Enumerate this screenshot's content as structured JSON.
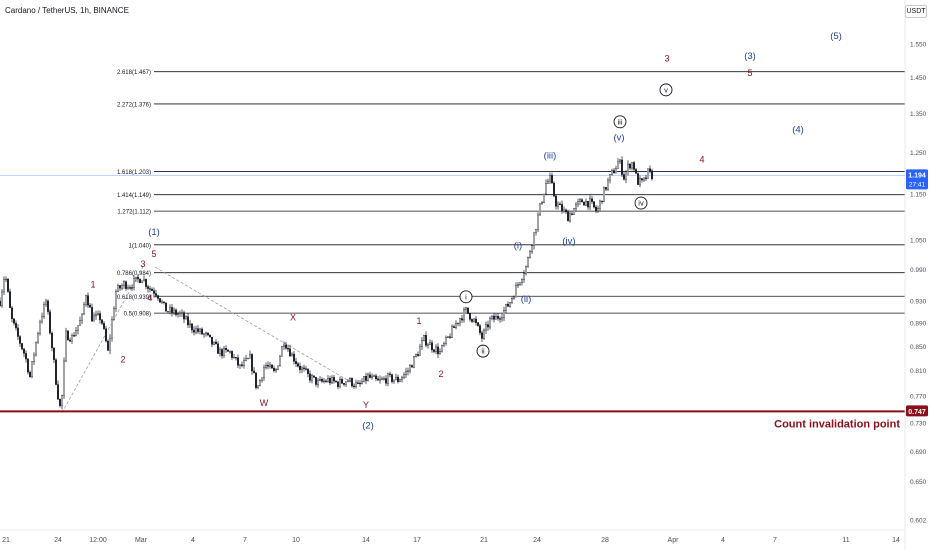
{
  "header": {
    "symbol": "Cardano / TetherUS, 1h, BINANCE",
    "currency": "USDT"
  },
  "colors": {
    "candle": "#131722",
    "fib_line": "#131722",
    "invalidation": "#8b0f1a",
    "wave_red": "#8b0f1a",
    "wave_blue": "#1f3f9a",
    "price_tag": "#2962ff",
    "cursor_line": "#9bb7ff",
    "axis_text": "#4a4e59"
  },
  "price_axis": {
    "ticks": [
      "1.550",
      "1.450",
      "1.350",
      "1.250",
      "1.150",
      "1.050",
      "0.990",
      "0.930",
      "0.890",
      "0.850",
      "0.810",
      "0.770",
      "0.730",
      "0.690",
      "0.650",
      "0.602"
    ],
    "current_price": "1.194",
    "countdown": "27:41",
    "invalidation_price": "0.747"
  },
  "time_axis": {
    "ticks": [
      "21",
      "24",
      "12:00",
      "Mar",
      "4",
      "7",
      "10",
      "14",
      "17",
      "21",
      "24",
      "28",
      "Apr",
      "4",
      "7",
      "11",
      "14"
    ]
  },
  "chart_data": {
    "type": "candlestick",
    "instrument": "Cardano / TetherUS",
    "interval": "1h",
    "exchange": "BINANCE",
    "current_price": 1.194,
    "y_scale": "log",
    "ylim": [
      0.6,
      1.56
    ],
    "price_path": [
      {
        "t": 0,
        "p": 0.93
      },
      {
        "t": 5,
        "p": 0.985
      },
      {
        "t": 11,
        "p": 0.9
      },
      {
        "t": 17,
        "p": 0.87
      },
      {
        "t": 25,
        "p": 0.835
      },
      {
        "t": 30,
        "p": 0.8
      },
      {
        "t": 40,
        "p": 0.895
      },
      {
        "t": 46,
        "p": 0.93
      },
      {
        "t": 52,
        "p": 0.85
      },
      {
        "t": 57,
        "p": 0.78
      },
      {
        "t": 61,
        "p": 0.745
      },
      {
        "t": 66,
        "p": 0.87
      },
      {
        "t": 72,
        "p": 0.865
      },
      {
        "t": 82,
        "p": 0.9
      },
      {
        "t": 86,
        "p": 0.945
      },
      {
        "t": 92,
        "p": 0.9
      },
      {
        "t": 101,
        "p": 0.9
      },
      {
        "t": 108,
        "p": 0.84
      },
      {
        "t": 116,
        "p": 0.948
      },
      {
        "t": 124,
        "p": 0.962
      },
      {
        "t": 130,
        "p": 0.96
      },
      {
        "t": 142,
        "p": 0.975
      },
      {
        "t": 149,
        "p": 0.955
      },
      {
        "t": 157,
        "p": 0.945
      },
      {
        "t": 165,
        "p": 0.915
      },
      {
        "t": 172,
        "p": 0.91
      },
      {
        "t": 181,
        "p": 0.905
      },
      {
        "t": 190,
        "p": 0.885
      },
      {
        "t": 199,
        "p": 0.875
      },
      {
        "t": 206,
        "p": 0.868
      },
      {
        "t": 212,
        "p": 0.855
      },
      {
        "t": 220,
        "p": 0.84
      },
      {
        "t": 230,
        "p": 0.84
      },
      {
        "t": 240,
        "p": 0.815
      },
      {
        "t": 250,
        "p": 0.83
      },
      {
        "t": 257,
        "p": 0.78
      },
      {
        "t": 265,
        "p": 0.82
      },
      {
        "t": 275,
        "p": 0.805
      },
      {
        "t": 284,
        "p": 0.86
      },
      {
        "t": 292,
        "p": 0.835
      },
      {
        "t": 300,
        "p": 0.815
      },
      {
        "t": 308,
        "p": 0.802
      },
      {
        "t": 318,
        "p": 0.79
      },
      {
        "t": 328,
        "p": 0.795
      },
      {
        "t": 338,
        "p": 0.79
      },
      {
        "t": 348,
        "p": 0.795
      },
      {
        "t": 358,
        "p": 0.785
      },
      {
        "t": 368,
        "p": 0.8
      },
      {
        "t": 378,
        "p": 0.792
      },
      {
        "t": 388,
        "p": 0.798
      },
      {
        "t": 398,
        "p": 0.795
      },
      {
        "t": 408,
        "p": 0.81
      },
      {
        "t": 418,
        "p": 0.84
      },
      {
        "t": 424,
        "p": 0.862
      },
      {
        "t": 432,
        "p": 0.85
      },
      {
        "t": 440,
        "p": 0.84
      },
      {
        "t": 450,
        "p": 0.87
      },
      {
        "t": 458,
        "p": 0.895
      },
      {
        "t": 466,
        "p": 0.912
      },
      {
        "t": 474,
        "p": 0.895
      },
      {
        "t": 482,
        "p": 0.865
      },
      {
        "t": 490,
        "p": 0.895
      },
      {
        "t": 497,
        "p": 0.9
      },
      {
        "t": 503,
        "p": 0.91
      },
      {
        "t": 509,
        "p": 0.925
      },
      {
        "t": 515,
        "p": 0.95
      },
      {
        "t": 521,
        "p": 0.975
      },
      {
        "t": 527,
        "p": 1.0
      },
      {
        "t": 531,
        "p": 1.04
      },
      {
        "t": 535,
        "p": 1.07
      },
      {
        "t": 540,
        "p": 1.12
      },
      {
        "t": 546,
        "p": 1.175
      },
      {
        "t": 550,
        "p": 1.185
      },
      {
        "t": 556,
        "p": 1.13
      },
      {
        "t": 562,
        "p": 1.115
      },
      {
        "t": 568,
        "p": 1.1
      },
      {
        "t": 575,
        "p": 1.12
      },
      {
        "t": 582,
        "p": 1.135
      },
      {
        "t": 590,
        "p": 1.13
      },
      {
        "t": 597,
        "p": 1.11
      },
      {
        "t": 603,
        "p": 1.15
      },
      {
        "t": 609,
        "p": 1.185
      },
      {
        "t": 615,
        "p": 1.21
      },
      {
        "t": 619,
        "p": 1.23
      },
      {
        "t": 624,
        "p": 1.19
      },
      {
        "t": 629,
        "p": 1.22
      },
      {
        "t": 633,
        "p": 1.225
      },
      {
        "t": 637,
        "p": 1.18
      },
      {
        "t": 643,
        "p": 1.175
      },
      {
        "t": 648,
        "p": 1.2
      },
      {
        "t": 652,
        "p": 1.194
      }
    ],
    "fib_levels": [
      {
        "label": "2.618(1.467)",
        "value": 1.467
      },
      {
        "label": "2.272(1.376)",
        "value": 1.376
      },
      {
        "label": "1.618(1.203)",
        "value": 1.203
      },
      {
        "label": "1.414(1.149)",
        "value": 1.149
      },
      {
        "label": "1.272(1.112)",
        "value": 1.112
      },
      {
        "label": "1(1.040)",
        "value": 1.04
      },
      {
        "label": "0.786(0.984)",
        "value": 0.984
      },
      {
        "label": "0.618(0.939)",
        "value": 0.939
      },
      {
        "label": "0.5(0.908)",
        "value": 0.908
      }
    ],
    "invalidation": {
      "label": "Count invalidation point",
      "value": 0.747
    },
    "wave_labels": [
      {
        "text": "1",
        "color": "red",
        "t": 93,
        "p": 0.955
      },
      {
        "text": "2",
        "color": "red",
        "t": 123,
        "p": 0.823
      },
      {
        "text": "3",
        "color": "red",
        "t": 143,
        "p": 0.995
      },
      {
        "text": "5",
        "color": "red",
        "t": 154,
        "p": 1.015
      },
      {
        "text": "4",
        "color": "red",
        "t": 150,
        "p": 0.93
      },
      {
        "text": "(1)",
        "color": "blue",
        "t": 154,
        "p": 1.06
      },
      {
        "text": "W",
        "color": "red",
        "t": 264,
        "p": 0.755
      },
      {
        "text": "X",
        "color": "red",
        "t": 293,
        "p": 0.895
      },
      {
        "text": "Y",
        "color": "red",
        "t": 366,
        "p": 0.752
      },
      {
        "text": "(2)",
        "color": "blue",
        "t": 368,
        "p": 0.722
      },
      {
        "text": "1",
        "color": "red",
        "t": 419,
        "p": 0.889
      },
      {
        "text": "2",
        "color": "red",
        "t": 441,
        "p": 0.8
      },
      {
        "text": "i",
        "color": "circle",
        "t": 466,
        "p": 0.938
      },
      {
        "text": "ii",
        "color": "circle",
        "t": 483,
        "p": 0.842
      },
      {
        "text": "(i)",
        "color": "blue",
        "t": 518,
        "p": 1.032
      },
      {
        "text": "(ii)",
        "color": "blue",
        "t": 526,
        "p": 0.928
      },
      {
        "text": "(iii)",
        "color": "blue",
        "t": 550,
        "p": 1.235
      },
      {
        "text": "(iv)",
        "color": "blue",
        "t": 569,
        "p": 1.042
      },
      {
        "text": "(v)",
        "color": "blue",
        "t": 619,
        "p": 1.28
      },
      {
        "text": "iii",
        "color": "circle",
        "t": 620,
        "p": 1.328
      },
      {
        "text": "iv",
        "color": "circle",
        "t": 641,
        "p": 1.13
      },
      {
        "text": "v",
        "color": "circle",
        "t": 666,
        "p": 1.415
      },
      {
        "text": "3",
        "color": "red",
        "t": 667,
        "p": 1.497
      },
      {
        "text": "4",
        "color": "red",
        "t": 702,
        "p": 1.225
      },
      {
        "text": "(3)",
        "color": "blue",
        "t": 750,
        "p": 1.505
      },
      {
        "text": "5",
        "color": "red",
        "t": 750,
        "p": 1.455
      },
      {
        "text": "(4)",
        "color": "blue",
        "t": 798,
        "p": 1.3
      },
      {
        "text": "(5)",
        "color": "blue",
        "t": 836,
        "p": 1.565
      }
    ],
    "dashed_trendlines": [
      [
        {
          "t": 62,
          "p": 0.745
        },
        {
          "t": 143,
          "p": 0.995
        }
      ],
      [
        {
          "t": 155,
          "p": 0.995
        },
        {
          "t": 355,
          "p": 0.788
        }
      ]
    ]
  }
}
